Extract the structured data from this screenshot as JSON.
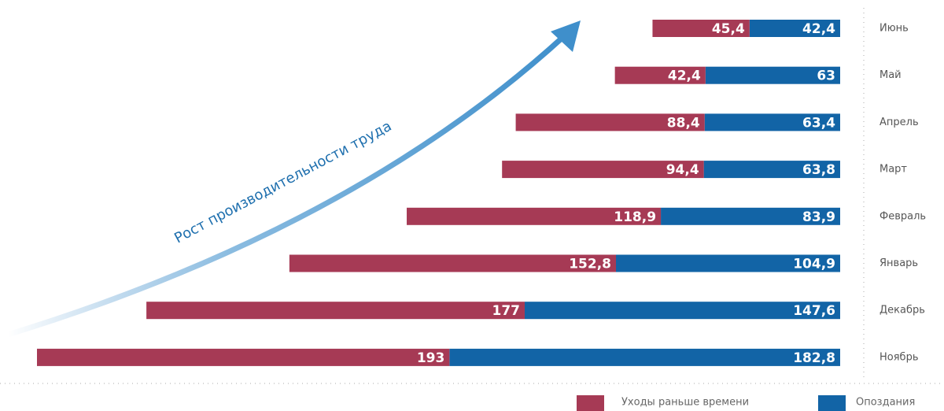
{
  "chart_data": {
    "type": "bar",
    "orientation": "horizontal",
    "stacked": true,
    "annotation": "Рост производительности труда",
    "categories": [
      "Июнь",
      "Май",
      "Апрель",
      "Март",
      "Февраль",
      "Январь",
      "Декабрь",
      "Ноябрь"
    ],
    "series": [
      {
        "name": "Уходы раньше времени",
        "color": "#a63a55",
        "values": [
          45.4,
          42.4,
          88.4,
          94.4,
          118.9,
          152.8,
          177,
          193
        ],
        "value_labels": [
          "45,4",
          "42,4",
          "88,4",
          "94,4",
          "118,9",
          "152,8",
          "177",
          "193"
        ]
      },
      {
        "name": "Опоздания",
        "color": "#1264a6",
        "values": [
          42.4,
          63,
          63.4,
          63.8,
          83.9,
          104.9,
          147.6,
          182.8
        ],
        "value_labels": [
          "42,4",
          "63",
          "63,4",
          "63,8",
          "83,9",
          "104,9",
          "147,6",
          "182,8"
        ]
      }
    ],
    "legend": "bottom-right"
  }
}
